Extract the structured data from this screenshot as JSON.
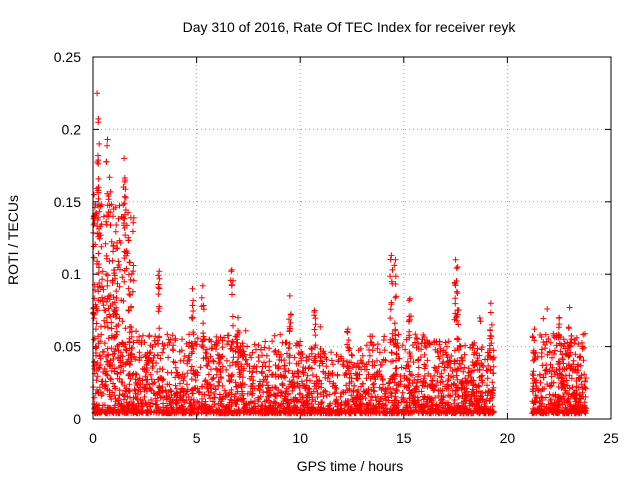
{
  "chart_data": {
    "type": "scatter",
    "title": "Day 310 of 2016, Rate Of TEC Index for receiver reyk",
    "xlabel": "GPS time / hours",
    "ylabel": "ROTI / TECUs",
    "xlim": [
      0,
      25
    ],
    "ylim": [
      0,
      0.25
    ],
    "x_ticks": [
      "0",
      "5",
      "10",
      "15",
      "20",
      "25"
    ],
    "y_ticks": [
      "0",
      "0.05",
      "0.1",
      "0.15",
      "0.2",
      "0.25"
    ],
    "grid": true,
    "marker": "+",
    "color": "#ff0000",
    "series": [
      {
        "name": "ROTI",
        "description_of_density": "dense band of points roughly 0.005-0.06 TECU/s from 0 to 19.3 h and 21.2 to 23.8 h; data gap between 19.3 and 21.2 h",
        "peaks": [
          {
            "x": 0.05,
            "y": 0.155
          },
          {
            "x": 0.2,
            "y": 0.225
          },
          {
            "x": 0.25,
            "y": 0.205
          },
          {
            "x": 0.3,
            "y": 0.19
          },
          {
            "x": 0.7,
            "y": 0.193
          },
          {
            "x": 0.8,
            "y": 0.167
          },
          {
            "x": 1.0,
            "y": 0.145
          },
          {
            "x": 1.5,
            "y": 0.18
          },
          {
            "x": 1.55,
            "y": 0.165
          },
          {
            "x": 3.2,
            "y": 0.102
          },
          {
            "x": 4.8,
            "y": 0.09
          },
          {
            "x": 5.3,
            "y": 0.092
          },
          {
            "x": 6.7,
            "y": 0.103
          },
          {
            "x": 7.0,
            "y": 0.07
          },
          {
            "x": 9.5,
            "y": 0.085
          },
          {
            "x": 10.7,
            "y": 0.075
          },
          {
            "x": 12.3,
            "y": 0.062
          },
          {
            "x": 14.4,
            "y": 0.113
          },
          {
            "x": 14.6,
            "y": 0.11
          },
          {
            "x": 15.3,
            "y": 0.083
          },
          {
            "x": 17.5,
            "y": 0.11
          },
          {
            "x": 17.6,
            "y": 0.105
          },
          {
            "x": 19.2,
            "y": 0.08
          },
          {
            "x": 22.5,
            "y": 0.07
          },
          {
            "x": 23.0,
            "y": 0.077
          }
        ]
      }
    ]
  }
}
